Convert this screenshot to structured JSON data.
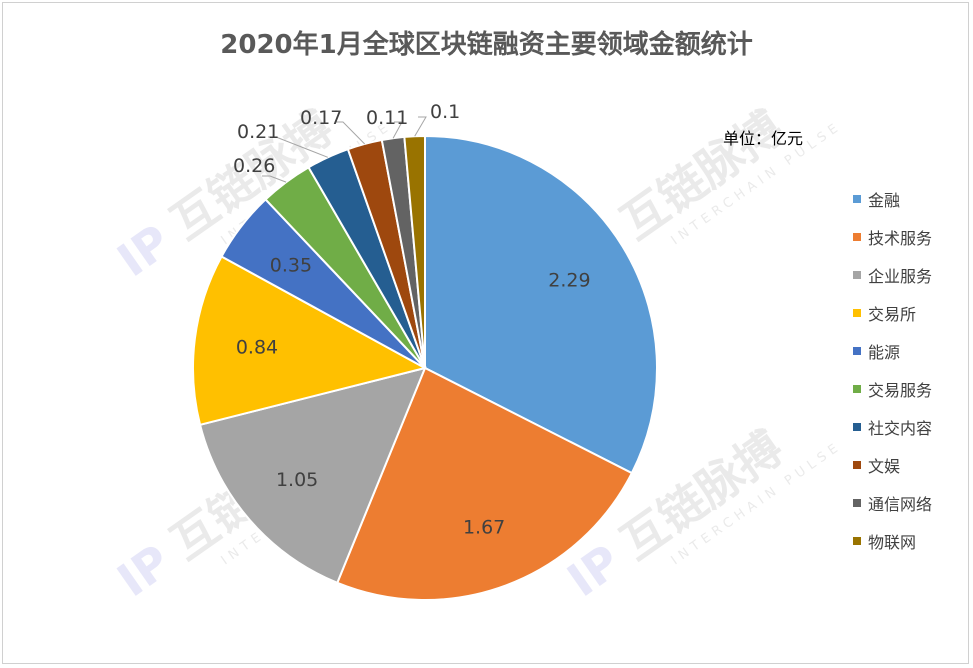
{
  "title": "2020年1月全球区块链融资主要领域金额统计",
  "unit_label": "单位：亿元",
  "watermark": {
    "text_cn": "互链脉搏",
    "text_en": "INTERCHAIN PULSE"
  },
  "chart_data": {
    "type": "pie",
    "title": "2020年1月全球区块链融资主要领域金额统计",
    "unit": "单位：亿元",
    "legend_position": "right",
    "start_angle_deg": 0,
    "direction": "clockwise",
    "slices": [
      {
        "label": "金融",
        "value": 2.29,
        "value_label": "2.29",
        "color": "#5b9bd5",
        "label_placement": "inside"
      },
      {
        "label": "技术服务",
        "value": 1.67,
        "value_label": "1.67",
        "color": "#ed7d31",
        "label_placement": "inside"
      },
      {
        "label": "企业服务",
        "value": 1.05,
        "value_label": "1.05",
        "color": "#a5a5a5",
        "label_placement": "inside"
      },
      {
        "label": "交易所",
        "value": 0.84,
        "value_label": "0.84",
        "color": "#ffc000",
        "label_placement": "inside"
      },
      {
        "label": "能源",
        "value": 0.35,
        "value_label": "0.35",
        "color": "#4472c4",
        "label_placement": "inside"
      },
      {
        "label": "交易服务",
        "value": 0.26,
        "value_label": "0.26",
        "color": "#70ad47",
        "label_placement": "outside"
      },
      {
        "label": "社交内容",
        "value": 0.21,
        "value_label": "0.21",
        "color": "#255e91",
        "label_placement": "outside"
      },
      {
        "label": "文娱",
        "value": 0.17,
        "value_label": "0.17",
        "color": "#9e480e",
        "label_placement": "outside"
      },
      {
        "label": "通信网络",
        "value": 0.11,
        "value_label": "0.11",
        "color": "#636363",
        "label_placement": "outside"
      },
      {
        "label": "物联网",
        "value": 0.1,
        "value_label": "0.1",
        "color": "#997300",
        "label_placement": "outside"
      }
    ]
  }
}
